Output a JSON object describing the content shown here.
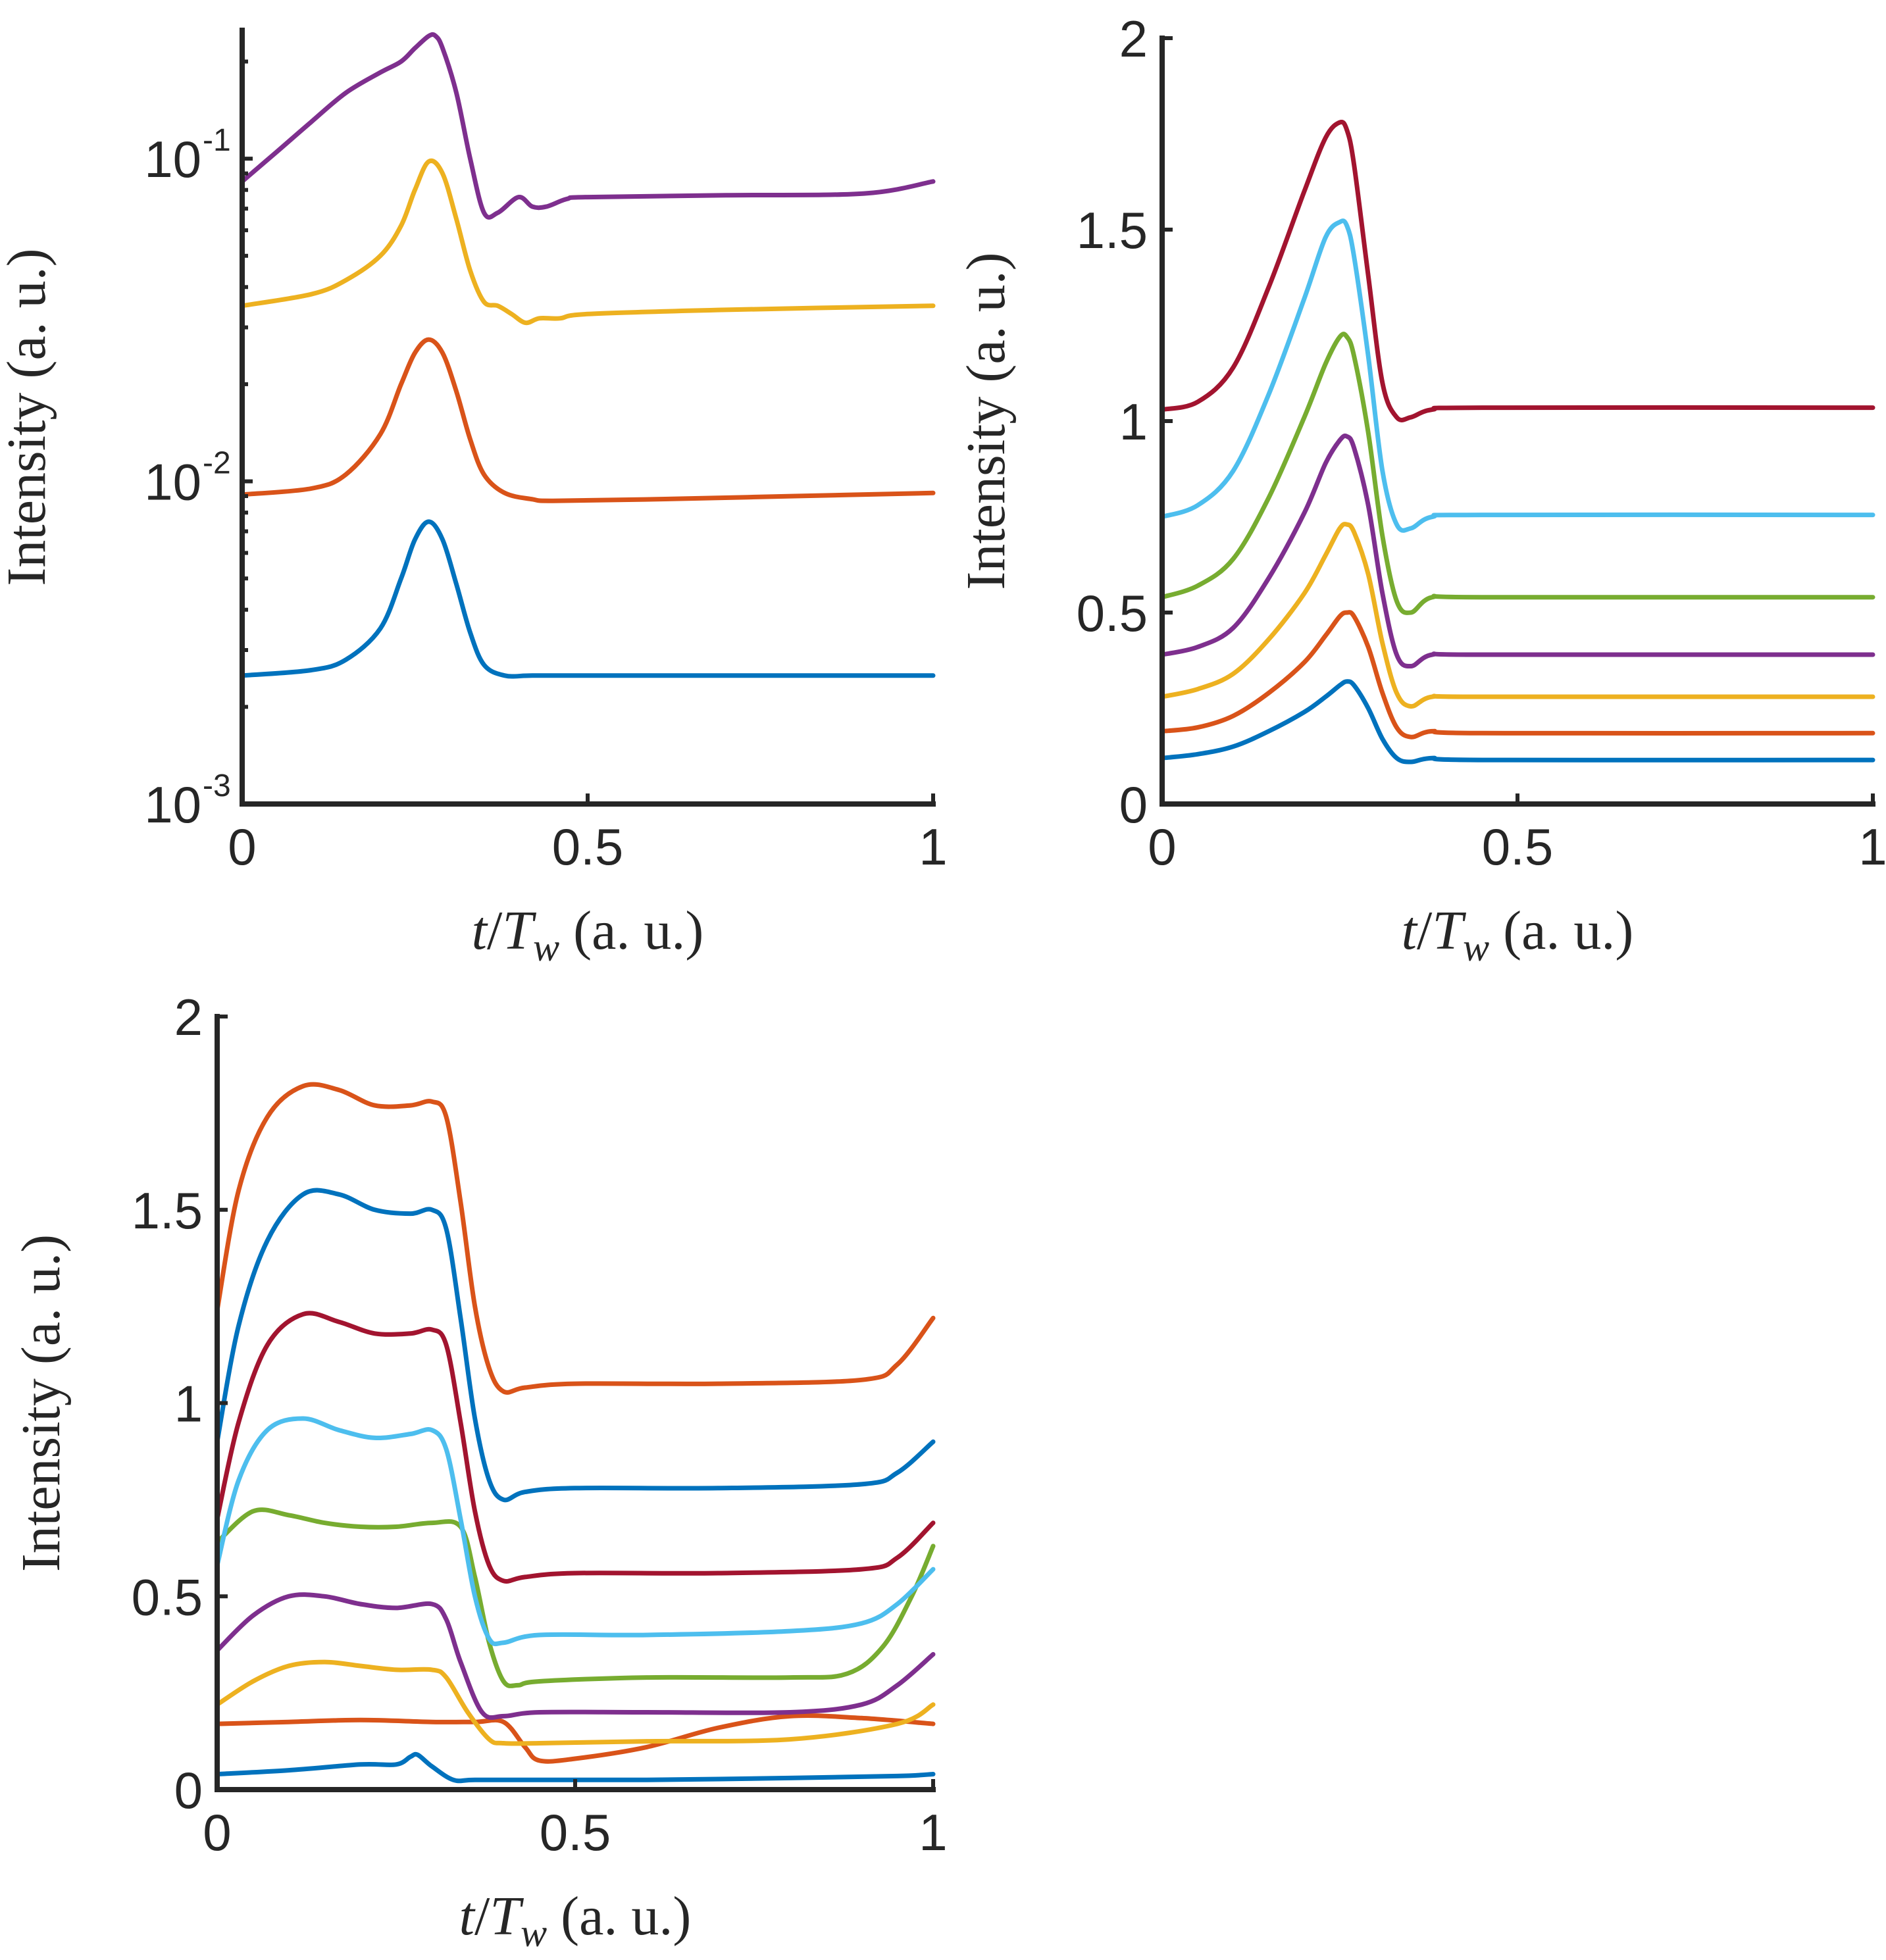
{
  "chart_data": [
    {
      "type": "line",
      "yscale": "log",
      "xlabel_parts": [
        "t",
        "/",
        "T",
        "w",
        " (a. u.)"
      ],
      "ylabel": "Intensity (a. u.)",
      "xlim": [
        0,
        1
      ],
      "ylim": [
        0.001,
        0.25
      ],
      "xticks": [
        {
          "value": 0,
          "label": "0"
        },
        {
          "value": 0.5,
          "label": "0.5"
        },
        {
          "value": 1,
          "label": "1"
        }
      ],
      "yticks": [
        {
          "value": 0.001,
          "base": "10",
          "exp": "-3"
        },
        {
          "value": 0.01,
          "base": "10",
          "exp": "-2"
        },
        {
          "value": 0.1,
          "base": "10",
          "exp": "-1"
        }
      ],
      "series": [
        {
          "name": "s1",
          "color": "#0072BD",
          "x": [
            0,
            0.1,
            0.15,
            0.2,
            0.23,
            0.25,
            0.27,
            0.29,
            0.31,
            0.33,
            0.35,
            0.38,
            0.42,
            0.5,
            0.7,
            1
          ],
          "y": [
            0.0025,
            0.0026,
            0.0028,
            0.0035,
            0.005,
            0.0066,
            0.0075,
            0.0066,
            0.0048,
            0.0034,
            0.0027,
            0.0025,
            0.0025,
            0.0025,
            0.0025,
            0.0025
          ]
        },
        {
          "name": "s2",
          "color": "#D95319",
          "x": [
            0,
            0.1,
            0.15,
            0.2,
            0.23,
            0.25,
            0.27,
            0.29,
            0.31,
            0.33,
            0.35,
            0.38,
            0.42,
            0.45,
            0.6,
            0.8,
            1
          ],
          "y": [
            0.0091,
            0.0095,
            0.0105,
            0.014,
            0.02,
            0.025,
            0.0275,
            0.025,
            0.019,
            0.0135,
            0.0105,
            0.0092,
            0.0088,
            0.0087,
            0.0088,
            0.009,
            0.0092
          ]
        },
        {
          "name": "s3",
          "color": "#EDB120",
          "x": [
            0,
            0.1,
            0.15,
            0.2,
            0.23,
            0.25,
            0.27,
            0.29,
            0.31,
            0.33,
            0.35,
            0.37,
            0.39,
            0.41,
            0.43,
            0.46,
            0.5,
            0.7,
            1
          ],
          "y": [
            0.035,
            0.038,
            0.042,
            0.05,
            0.062,
            0.08,
            0.098,
            0.09,
            0.065,
            0.045,
            0.036,
            0.035,
            0.033,
            0.031,
            0.032,
            0.032,
            0.033,
            0.034,
            0.035
          ]
        },
        {
          "name": "s4",
          "color": "#7E2F8E",
          "x": [
            0,
            0.05,
            0.1,
            0.15,
            0.2,
            0.23,
            0.25,
            0.27,
            0.28,
            0.29,
            0.31,
            0.33,
            0.35,
            0.37,
            0.4,
            0.42,
            0.44,
            0.47,
            0.5,
            0.7,
            0.9,
            1
          ],
          "y": [
            0.085,
            0.105,
            0.13,
            0.16,
            0.185,
            0.2,
            0.22,
            0.24,
            0.24,
            0.22,
            0.16,
            0.1,
            0.068,
            0.068,
            0.076,
            0.071,
            0.071,
            0.075,
            0.076,
            0.077,
            0.078,
            0.085
          ]
        }
      ]
    },
    {
      "type": "line",
      "yscale": "linear",
      "xlabel_parts": [
        "t",
        "/",
        "T",
        "w",
        " (a. u.)"
      ],
      "ylabel": "Intensity (a. u.)",
      "xlim": [
        0,
        1
      ],
      "ylim": [
        0,
        2
      ],
      "xticks": [
        {
          "value": 0,
          "label": "0"
        },
        {
          "value": 0.5,
          "label": "0.5"
        },
        {
          "value": 1,
          "label": "1"
        }
      ],
      "yticks": [
        {
          "value": 0,
          "label": "0"
        },
        {
          "value": 0.5,
          "label": "0.5"
        },
        {
          "value": 1,
          "label": "1"
        },
        {
          "value": 1.5,
          "label": "1.5"
        },
        {
          "value": 2,
          "label": "2"
        }
      ],
      "series": [
        {
          "name": "s1",
          "color": "#0072BD",
          "x": [
            0,
            0.05,
            0.1,
            0.15,
            0.2,
            0.23,
            0.25,
            0.26,
            0.27,
            0.29,
            0.31,
            0.33,
            0.35,
            0.38,
            0.45,
            1
          ],
          "y": [
            0.12,
            0.13,
            0.15,
            0.19,
            0.24,
            0.28,
            0.31,
            0.32,
            0.31,
            0.25,
            0.17,
            0.12,
            0.11,
            0.12,
            0.115,
            0.115
          ]
        },
        {
          "name": "s2",
          "color": "#D95319",
          "x": [
            0,
            0.05,
            0.1,
            0.15,
            0.2,
            0.23,
            0.25,
            0.26,
            0.27,
            0.29,
            0.31,
            0.33,
            0.35,
            0.38,
            0.45,
            1
          ],
          "y": [
            0.19,
            0.2,
            0.23,
            0.29,
            0.37,
            0.44,
            0.49,
            0.5,
            0.49,
            0.41,
            0.29,
            0.2,
            0.175,
            0.19,
            0.185,
            0.185
          ]
        },
        {
          "name": "s3",
          "color": "#EDB120",
          "x": [
            0,
            0.05,
            0.1,
            0.15,
            0.2,
            0.23,
            0.25,
            0.26,
            0.27,
            0.29,
            0.31,
            0.33,
            0.35,
            0.38,
            0.45,
            1
          ],
          "y": [
            0.28,
            0.3,
            0.34,
            0.43,
            0.55,
            0.65,
            0.72,
            0.73,
            0.71,
            0.6,
            0.42,
            0.29,
            0.255,
            0.28,
            0.28,
            0.28
          ]
        },
        {
          "name": "s4",
          "color": "#7E2F8E",
          "x": [
            0,
            0.05,
            0.1,
            0.15,
            0.2,
            0.23,
            0.25,
            0.26,
            0.27,
            0.29,
            0.31,
            0.33,
            0.35,
            0.38,
            0.45,
            1
          ],
          "y": [
            0.39,
            0.41,
            0.46,
            0.59,
            0.76,
            0.89,
            0.95,
            0.96,
            0.93,
            0.78,
            0.55,
            0.39,
            0.36,
            0.39,
            0.39,
            0.39
          ]
        },
        {
          "name": "s5",
          "color": "#77AC30",
          "x": [
            0,
            0.05,
            0.1,
            0.15,
            0.2,
            0.23,
            0.25,
            0.26,
            0.27,
            0.29,
            0.31,
            0.33,
            0.35,
            0.38,
            0.45,
            1
          ],
          "y": [
            0.54,
            0.57,
            0.64,
            0.8,
            1.01,
            1.15,
            1.22,
            1.22,
            1.17,
            0.97,
            0.7,
            0.53,
            0.5,
            0.54,
            0.54,
            0.54
          ]
        },
        {
          "name": "s6",
          "color": "#4DBEEE",
          "x": [
            0,
            0.05,
            0.1,
            0.15,
            0.2,
            0.23,
            0.25,
            0.26,
            0.27,
            0.29,
            0.31,
            0.33,
            0.35,
            0.38,
            0.45,
            1
          ],
          "y": [
            0.75,
            0.78,
            0.87,
            1.07,
            1.32,
            1.48,
            1.52,
            1.51,
            1.43,
            1.17,
            0.87,
            0.73,
            0.72,
            0.75,
            0.755,
            0.755
          ]
        },
        {
          "name": "s7",
          "color": "#A2142F",
          "x": [
            0,
            0.05,
            0.1,
            0.15,
            0.2,
            0.23,
            0.25,
            0.26,
            0.27,
            0.29,
            0.31,
            0.33,
            0.35,
            0.38,
            0.45,
            1
          ],
          "y": [
            1.03,
            1.05,
            1.14,
            1.35,
            1.6,
            1.74,
            1.78,
            1.76,
            1.67,
            1.38,
            1.1,
            1.01,
            1.01,
            1.03,
            1.035,
            1.035
          ]
        }
      ]
    },
    {
      "type": "line",
      "yscale": "linear",
      "xlabel_parts": [
        "t",
        "/",
        "T",
        "w",
        " (a. u.)"
      ],
      "ylabel": "Intensity (a. u.)",
      "xlim": [
        0,
        1
      ],
      "ylim": [
        0,
        2
      ],
      "xticks": [
        {
          "value": 0,
          "label": "0"
        },
        {
          "value": 0.5,
          "label": "0.5"
        },
        {
          "value": 1,
          "label": "1"
        }
      ],
      "yticks": [
        {
          "value": 0,
          "label": "0"
        },
        {
          "value": 0.5,
          "label": "0.5"
        },
        {
          "value": 1,
          "label": "1"
        },
        {
          "value": 1.5,
          "label": "1.5"
        },
        {
          "value": 2,
          "label": "2"
        }
      ],
      "series": [
        {
          "name": "s1",
          "color": "#0072BD",
          "x": [
            0,
            0.1,
            0.2,
            0.25,
            0.27,
            0.28,
            0.3,
            0.33,
            0.36,
            0.45,
            0.6,
            0.8,
            0.95,
            1
          ],
          "y": [
            0.04,
            0.05,
            0.065,
            0.065,
            0.085,
            0.09,
            0.06,
            0.025,
            0.025,
            0.025,
            0.025,
            0.03,
            0.035,
            0.04
          ]
        },
        {
          "name": "s2",
          "color": "#D95319",
          "x": [
            0,
            0.1,
            0.2,
            0.3,
            0.36,
            0.4,
            0.43,
            0.45,
            0.5,
            0.6,
            0.7,
            0.8,
            0.9,
            1
          ],
          "y": [
            0.17,
            0.175,
            0.18,
            0.175,
            0.175,
            0.175,
            0.11,
            0.075,
            0.08,
            0.11,
            0.16,
            0.19,
            0.185,
            0.17
          ]
        },
        {
          "name": "s3",
          "color": "#EDB120",
          "x": [
            0,
            0.05,
            0.1,
            0.15,
            0.2,
            0.25,
            0.3,
            0.32,
            0.35,
            0.38,
            0.4,
            0.45,
            0.6,
            0.8,
            0.95,
            1
          ],
          "y": [
            0.22,
            0.28,
            0.32,
            0.33,
            0.32,
            0.31,
            0.31,
            0.29,
            0.2,
            0.13,
            0.12,
            0.12,
            0.125,
            0.13,
            0.17,
            0.22
          ]
        },
        {
          "name": "s4",
          "color": "#7E2F8E",
          "x": [
            0,
            0.05,
            0.1,
            0.15,
            0.2,
            0.25,
            0.3,
            0.32,
            0.34,
            0.37,
            0.4,
            0.45,
            0.6,
            0.8,
            0.9,
            0.95,
            1
          ],
          "y": [
            0.36,
            0.45,
            0.5,
            0.5,
            0.48,
            0.47,
            0.48,
            0.44,
            0.33,
            0.2,
            0.19,
            0.2,
            0.2,
            0.2,
            0.22,
            0.27,
            0.35
          ]
        },
        {
          "name": "s5",
          "color": "#77AC30",
          "x": [
            0,
            0.05,
            0.1,
            0.15,
            0.2,
            0.25,
            0.3,
            0.34,
            0.36,
            0.38,
            0.4,
            0.42,
            0.45,
            0.6,
            0.8,
            0.88,
            0.93,
            0.97,
            1
          ],
          "y": [
            0.64,
            0.72,
            0.71,
            0.69,
            0.68,
            0.68,
            0.69,
            0.68,
            0.55,
            0.38,
            0.28,
            0.27,
            0.28,
            0.29,
            0.29,
            0.3,
            0.37,
            0.5,
            0.63
          ]
        },
        {
          "name": "s6",
          "color": "#4DBEEE",
          "x": [
            0,
            0.03,
            0.07,
            0.12,
            0.17,
            0.22,
            0.27,
            0.3,
            0.32,
            0.34,
            0.36,
            0.38,
            0.4,
            0.45,
            0.6,
            0.8,
            0.9,
            0.95,
            1
          ],
          "y": [
            0.58,
            0.8,
            0.93,
            0.96,
            0.93,
            0.91,
            0.92,
            0.93,
            0.88,
            0.7,
            0.5,
            0.39,
            0.38,
            0.4,
            0.4,
            0.41,
            0.43,
            0.48,
            0.57
          ]
        },
        {
          "name": "s7",
          "color": "#A2142F",
          "x": [
            0,
            0.03,
            0.07,
            0.12,
            0.17,
            0.22,
            0.27,
            0.3,
            0.32,
            0.34,
            0.36,
            0.38,
            0.4,
            0.43,
            0.5,
            0.7,
            0.9,
            0.95,
            1
          ],
          "y": [
            0.7,
            0.95,
            1.15,
            1.23,
            1.21,
            1.18,
            1.18,
            1.19,
            1.15,
            0.95,
            0.72,
            0.58,
            0.54,
            0.55,
            0.56,
            0.56,
            0.57,
            0.6,
            0.69
          ]
        },
        {
          "name": "s8",
          "color": "#0072BD",
          "x": [
            0,
            0.03,
            0.07,
            0.12,
            0.17,
            0.22,
            0.27,
            0.3,
            0.32,
            0.34,
            0.36,
            0.38,
            0.4,
            0.43,
            0.5,
            0.7,
            0.9,
            0.95,
            1
          ],
          "y": [
            0.9,
            1.2,
            1.42,
            1.54,
            1.54,
            1.5,
            1.49,
            1.5,
            1.45,
            1.22,
            0.96,
            0.8,
            0.75,
            0.77,
            0.78,
            0.78,
            0.79,
            0.82,
            0.9
          ]
        },
        {
          "name": "s9",
          "color": "#D95319",
          "x": [
            0,
            0.03,
            0.07,
            0.12,
            0.17,
            0.22,
            0.27,
            0.3,
            0.32,
            0.34,
            0.36,
            0.38,
            0.4,
            0.43,
            0.5,
            0.7,
            0.9,
            0.95,
            1
          ],
          "y": [
            1.24,
            1.55,
            1.74,
            1.82,
            1.81,
            1.77,
            1.77,
            1.78,
            1.74,
            1.52,
            1.25,
            1.09,
            1.03,
            1.04,
            1.05,
            1.05,
            1.06,
            1.1,
            1.22
          ]
        }
      ]
    }
  ]
}
